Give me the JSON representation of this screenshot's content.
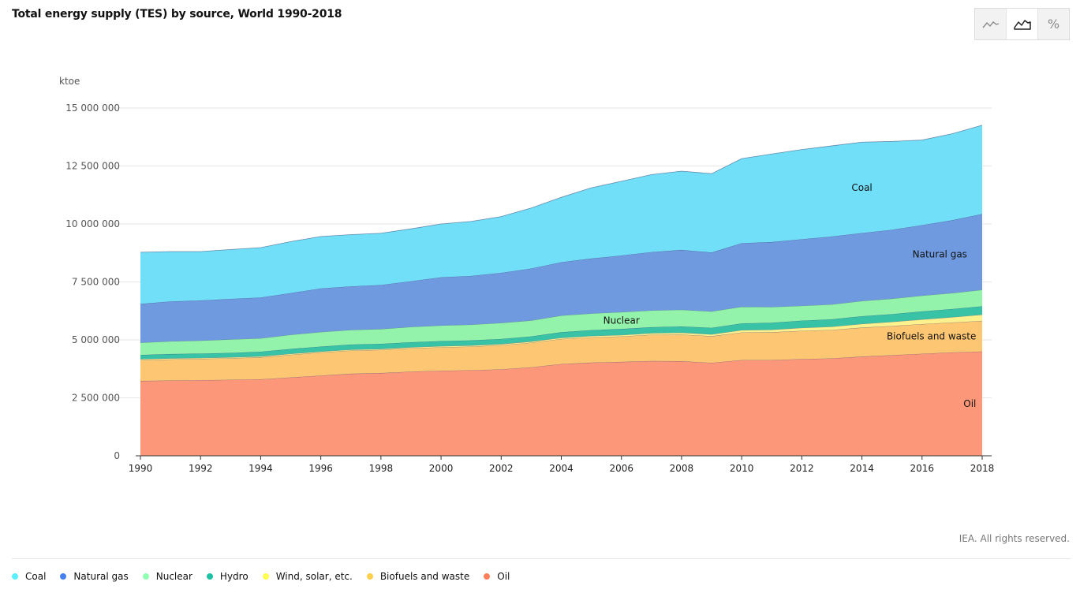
{
  "title": "Total energy supply (TES) by source, World 1990-2018",
  "toolbar": {
    "buttons": [
      {
        "icon": "line-chart-icon",
        "active": false
      },
      {
        "icon": "area-chart-icon",
        "active": true
      },
      {
        "icon": "percent-icon",
        "label": "%",
        "active": false
      }
    ]
  },
  "copyright": "IEA. All rights reserved.",
  "legend": [
    {
      "name": "Coal",
      "color": "#4fd0f5"
    },
    {
      "name": "Natural gas",
      "color": "#3c6fcf"
    },
    {
      "name": "Nuclear",
      "color": "#7ee89a"
    },
    {
      "name": "Hydro",
      "color": "#1aa88e"
    },
    {
      "name": "Wind, solar, etc.",
      "color": "#f7e948"
    },
    {
      "name": "Biofuels and waste",
      "color": "#f6b444"
    },
    {
      "name": "Oil",
      "color": "#f66e50"
    }
  ],
  "chart_data": {
    "type": "area",
    "stacked": true,
    "ylabel": "ktoe",
    "ylim": [
      0,
      15000000
    ],
    "yticks": [
      0,
      2500000,
      5000000,
      7500000,
      10000000,
      12500000,
      15000000
    ],
    "ytick_labels": [
      "0",
      "2 500 000",
      "5 000 000",
      "7 500 000",
      "10 000 000",
      "12 500 000",
      "15 000 000"
    ],
    "x": [
      1990,
      1991,
      1992,
      1993,
      1994,
      1995,
      1996,
      1997,
      1998,
      1999,
      2000,
      2001,
      2002,
      2003,
      2004,
      2005,
      2006,
      2007,
      2008,
      2009,
      2010,
      2011,
      2012,
      2013,
      2014,
      2015,
      2016,
      2017,
      2018
    ],
    "xticks": [
      "1990",
      "1992",
      "1994",
      "1996",
      "1998",
      "2000",
      "2002",
      "2004",
      "2006",
      "2008",
      "2010",
      "2012",
      "2014",
      "2016",
      "2018"
    ],
    "grid": true,
    "series": [
      {
        "name": "Oil",
        "color": "#fd9779",
        "values": [
          3230000,
          3250000,
          3260000,
          3280000,
          3300000,
          3380000,
          3460000,
          3540000,
          3570000,
          3630000,
          3670000,
          3690000,
          3730000,
          3820000,
          3960000,
          4020000,
          4050000,
          4090000,
          4080000,
          4010000,
          4130000,
          4130000,
          4170000,
          4200000,
          4280000,
          4340000,
          4400000,
          4460000,
          4500000
        ]
      },
      {
        "name": "Biofuels and waste",
        "color": "#fdc673",
        "values": [
          900000,
          910000,
          920000,
          930000,
          950000,
          980000,
          1000000,
          1000000,
          1000000,
          1010000,
          1010000,
          1020000,
          1040000,
          1060000,
          1080000,
          1090000,
          1100000,
          1130000,
          1150000,
          1150000,
          1190000,
          1200000,
          1220000,
          1230000,
          1250000,
          1260000,
          1280000,
          1290000,
          1320000
        ]
      },
      {
        "name": "Wind, solar, etc.",
        "color": "#fdf18e",
        "values": [
          40000,
          40000,
          40000,
          40000,
          40000,
          40000,
          40000,
          40000,
          40000,
          40000,
          50000,
          50000,
          50000,
          50000,
          50000,
          60000,
          60000,
          70000,
          80000,
          80000,
          100000,
          110000,
          130000,
          140000,
          160000,
          180000,
          200000,
          230000,
          270000
        ]
      },
      {
        "name": "Hydro",
        "color": "#38c2a6",
        "values": [
          180000,
          190000,
          190000,
          190000,
          200000,
          210000,
          210000,
          220000,
          220000,
          220000,
          220000,
          220000,
          220000,
          220000,
          240000,
          250000,
          260000,
          260000,
          270000,
          280000,
          290000,
          300000,
          310000,
          320000,
          330000,
          330000,
          350000,
          350000,
          360000
        ]
      },
      {
        "name": "Nuclear",
        "color": "#94f3ab",
        "values": [
          530000,
          550000,
          560000,
          580000,
          580000,
          610000,
          630000,
          630000,
          640000,
          660000,
          670000,
          680000,
          690000,
          690000,
          720000,
          720000,
          730000,
          720000,
          720000,
          710000,
          720000,
          680000,
          640000,
          640000,
          660000,
          670000,
          680000,
          690000,
          710000
        ]
      },
      {
        "name": "Natural gas",
        "color": "#6f9ae0",
        "values": [
          1670000,
          1720000,
          1730000,
          1750000,
          1760000,
          1800000,
          1880000,
          1880000,
          1900000,
          1970000,
          2080000,
          2100000,
          2160000,
          2240000,
          2300000,
          2370000,
          2440000,
          2520000,
          2580000,
          2540000,
          2740000,
          2800000,
          2870000,
          2930000,
          2930000,
          2970000,
          3040000,
          3140000,
          3270000
        ]
      },
      {
        "name": "Coal",
        "color": "#72dff9",
        "values": [
          2230000,
          2150000,
          2110000,
          2130000,
          2150000,
          2220000,
          2240000,
          2230000,
          2230000,
          2260000,
          2300000,
          2350000,
          2430000,
          2610000,
          2800000,
          3050000,
          3200000,
          3340000,
          3400000,
          3400000,
          3650000,
          3800000,
          3870000,
          3910000,
          3920000,
          3810000,
          3670000,
          3730000,
          3830000
        ]
      }
    ],
    "area_labels": [
      {
        "series": "Coal",
        "text": "Coal"
      },
      {
        "series": "Natural gas",
        "text": "Natural gas"
      },
      {
        "series": "Nuclear",
        "text": "Nuclear"
      },
      {
        "series": "Biofuels and waste",
        "text": "Biofuels and waste"
      },
      {
        "series": "Oil",
        "text": "Oil"
      }
    ]
  }
}
